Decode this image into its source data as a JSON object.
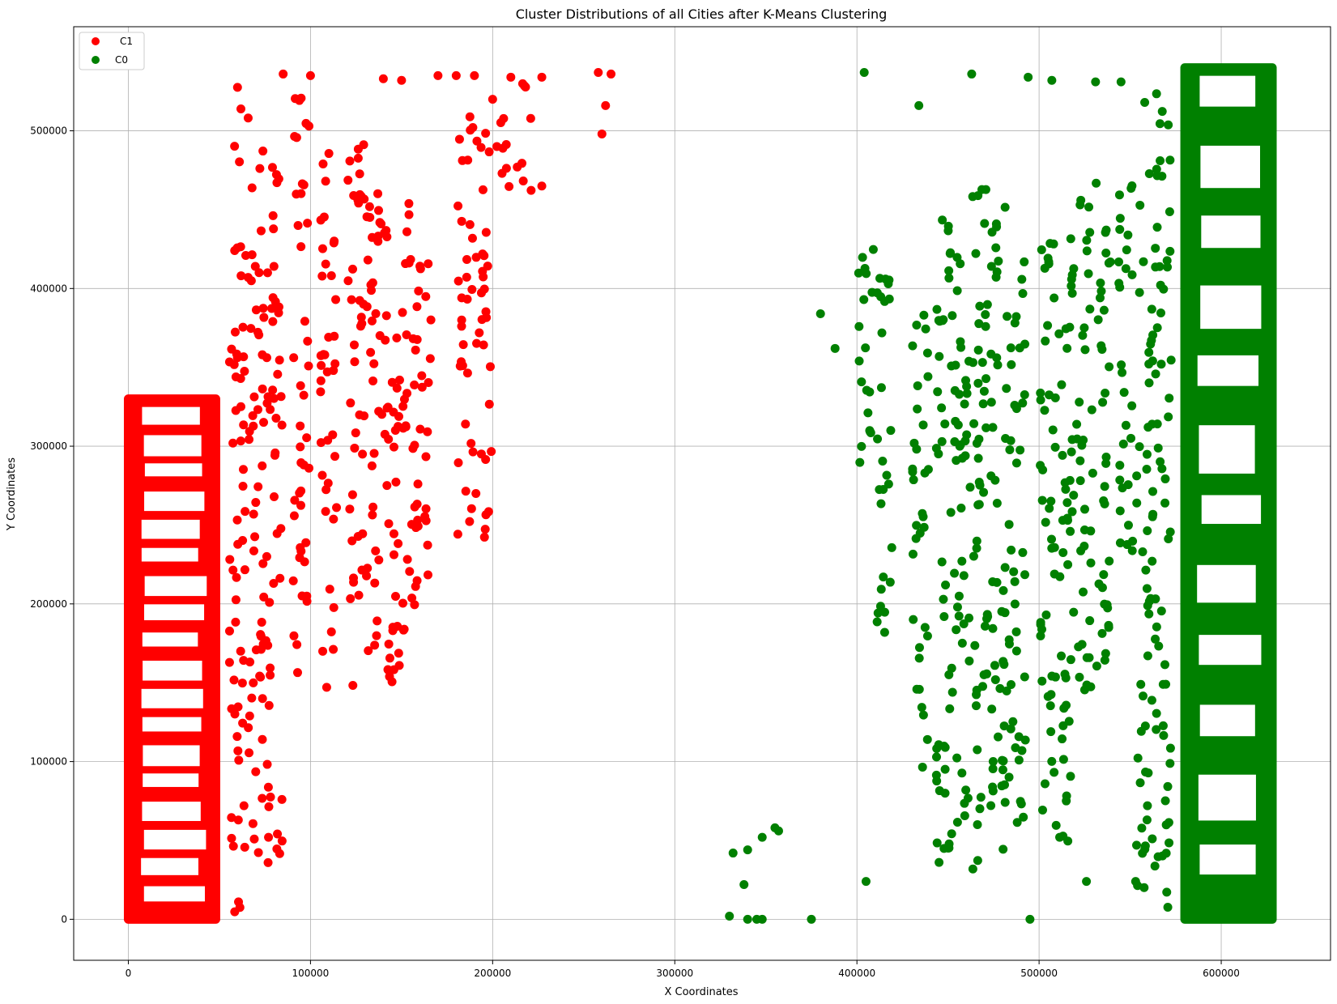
{
  "chart_data": {
    "type": "scatter",
    "title": "Cluster Distributions of all Cities after K-Means Clustering",
    "xlabel": "X Coordinates",
    "ylabel": "Y Coordinates",
    "xlim": [
      -30000,
      660000
    ],
    "ylim": [
      -26000,
      566000
    ],
    "xticks": [
      0,
      100000,
      200000,
      300000,
      400000,
      500000,
      600000
    ],
    "yticks": [
      0,
      100000,
      200000,
      300000,
      400000,
      500000
    ],
    "grid": true,
    "legend": "top-left",
    "series": [
      {
        "name": "C1",
        "color": "#ff0000",
        "dense_rect": [
          0,
          48000,
          0,
          330000
        ],
        "columns": [
          [
            60000,
            0,
            530000
          ],
          [
            70000,
            30000,
            520000
          ],
          [
            80000,
            30000,
            480000
          ],
          [
            95000,
            150000,
            535000
          ],
          [
            110000,
            145000,
            500000
          ],
          [
            125000,
            145000,
            495000
          ],
          [
            135000,
            145000,
            470000
          ],
          [
            145000,
            150000,
            470000
          ],
          [
            155000,
            180000,
            460000
          ],
          [
            162000,
            210000,
            430000
          ],
          [
            185000,
            240000,
            510000
          ],
          [
            195000,
            240000,
            510000
          ],
          [
            205000,
            450000,
            520000
          ],
          [
            218000,
            460000,
            535000
          ]
        ],
        "points": [
          [
            258000,
            537000
          ],
          [
            265000,
            536000
          ],
          [
            262000,
            516000
          ],
          [
            260000,
            498000
          ],
          [
            227000,
            465000
          ],
          [
            227000,
            534000
          ],
          [
            210000,
            534000
          ],
          [
            200000,
            520000
          ],
          [
            170000,
            535000
          ],
          [
            180000,
            535000
          ],
          [
            100000,
            535000
          ],
          [
            85000,
            536000
          ],
          [
            140000,
            533000
          ],
          [
            150000,
            532000
          ],
          [
            190000,
            535000
          ],
          [
            183000,
            380000
          ]
        ]
      },
      {
        "name": "C0",
        "color": "#008000",
        "dense_rect": [
          580000,
          628000,
          0,
          540000
        ],
        "columns": [
          [
            405000,
            260000,
            430000
          ],
          [
            415000,
            175000,
            415000
          ],
          [
            435000,
            90000,
            400000
          ],
          [
            448000,
            30000,
            450000
          ],
          [
            458000,
            30000,
            420000
          ],
          [
            468000,
            30000,
            465000
          ],
          [
            478000,
            25000,
            460000
          ],
          [
            488000,
            50000,
            430000
          ],
          [
            505000,
            40000,
            440000
          ],
          [
            515000,
            45000,
            440000
          ],
          [
            525000,
            140000,
            460000
          ],
          [
            535000,
            160000,
            470000
          ],
          [
            548000,
            210000,
            470000
          ],
          [
            558000,
            20000,
            480000
          ],
          [
            568000,
            0,
            530000
          ]
        ],
        "points": [
          [
            330000,
            2000
          ],
          [
            332000,
            42000
          ],
          [
            338000,
            22000
          ],
          [
            340000,
            44000
          ],
          [
            340000,
            0
          ],
          [
            345000,
            0
          ],
          [
            348000,
            0
          ],
          [
            348000,
            52000
          ],
          [
            355000,
            58000
          ],
          [
            357000,
            56000
          ],
          [
            375000,
            0
          ],
          [
            380000,
            384000
          ],
          [
            388000,
            362000
          ],
          [
            405000,
            24000
          ],
          [
            404000,
            537000
          ],
          [
            434000,
            516000
          ],
          [
            463000,
            536000
          ],
          [
            494000,
            534000
          ],
          [
            495000,
            0
          ],
          [
            507000,
            532000
          ],
          [
            526000,
            24000
          ],
          [
            553000,
            24000
          ],
          [
            545000,
            531000
          ],
          [
            558000,
            518000
          ],
          [
            531000,
            531000
          ]
        ]
      }
    ]
  }
}
